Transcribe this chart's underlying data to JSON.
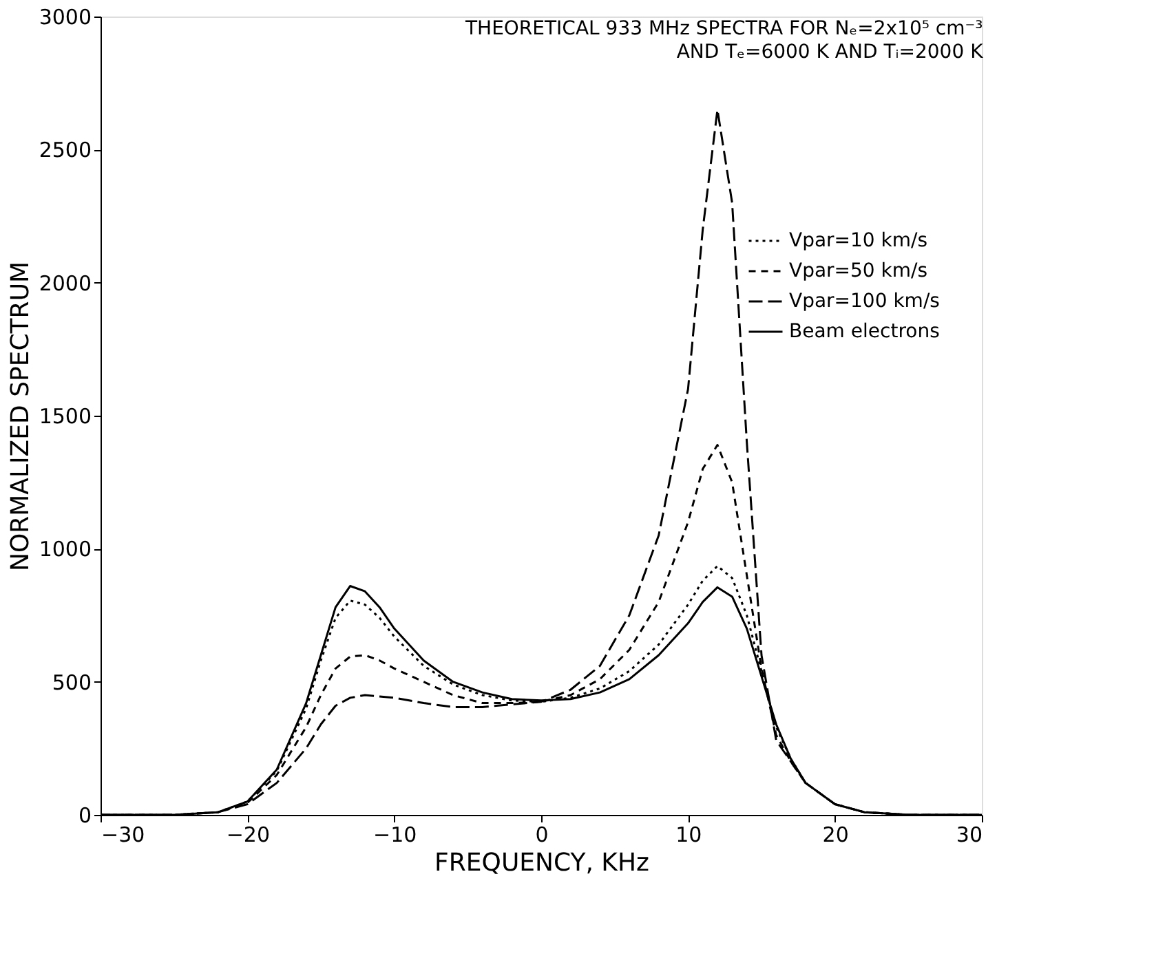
{
  "chart_data": {
    "type": "line",
    "title": "THEORETICAL 933 MHz SPECTRA FOR Nₑ=2x10⁵ cm⁻³",
    "subtitle": "AND Tₑ=6000 K AND Tᵢ=2000 K",
    "xlabel": "FREQUENCY, KHz",
    "ylabel": "NORMALIZED SPECTRUM",
    "xlim": [
      -30,
      30
    ],
    "xticks": [
      -30,
      -20,
      -10,
      0,
      10,
      20,
      30
    ],
    "ylim": [
      0,
      3000
    ],
    "yticks": [
      0,
      500,
      1000,
      1500,
      2000,
      2500,
      3000
    ],
    "grid": false,
    "legend": "right",
    "marker": "none",
    "x": [
      -30,
      -25,
      -22,
      -20,
      -18,
      -16,
      -15,
      -14,
      -13,
      -12,
      -11,
      -10,
      -8,
      -6,
      -4,
      -2,
      0,
      2,
      4,
      6,
      8,
      10,
      11,
      12,
      13,
      14,
      15,
      16,
      17,
      18,
      20,
      22,
      25,
      30
    ],
    "series": [
      {
        "name": "Vpar=10 km/s",
        "color": "#000000",
        "line_style": "dotted",
        "values": [
          0,
          0,
          10,
          50,
          165,
          400,
          580,
          740,
          805,
          790,
          740,
          670,
          560,
          490,
          450,
          430,
          425,
          440,
          475,
          540,
          640,
          790,
          880,
          935,
          890,
          750,
          540,
          330,
          210,
          120,
          40,
          10,
          0,
          0
        ]
      },
      {
        "name": "Vpar=50 km/s",
        "color": "#000000",
        "line_style": "dashed",
        "values": [
          0,
          0,
          10,
          45,
          150,
          330,
          450,
          550,
          595,
          600,
          580,
          550,
          500,
          450,
          420,
          420,
          425,
          450,
          510,
          620,
          800,
          1100,
          1300,
          1390,
          1250,
          900,
          550,
          300,
          200,
          120,
          40,
          10,
          0,
          0
        ]
      },
      {
        "name": "Vpar=100 km/s",
        "color": "#000000",
        "line_style": "dashed",
        "values": [
          0,
          0,
          10,
          40,
          120,
          250,
          340,
          410,
          440,
          450,
          445,
          440,
          420,
          405,
          405,
          415,
          425,
          470,
          560,
          750,
          1050,
          1600,
          2200,
          2650,
          2300,
          1400,
          600,
          280,
          200,
          120,
          40,
          10,
          0,
          0
        ]
      },
      {
        "name": "Beam electrons",
        "color": "#000000",
        "line_style": "solid",
        "values": [
          0,
          0,
          10,
          50,
          170,
          420,
          600,
          780,
          860,
          840,
          780,
          700,
          580,
          500,
          460,
          435,
          430,
          435,
          460,
          510,
          600,
          720,
          800,
          855,
          820,
          700,
          520,
          340,
          210,
          120,
          40,
          10,
          0,
          0
        ]
      }
    ]
  }
}
